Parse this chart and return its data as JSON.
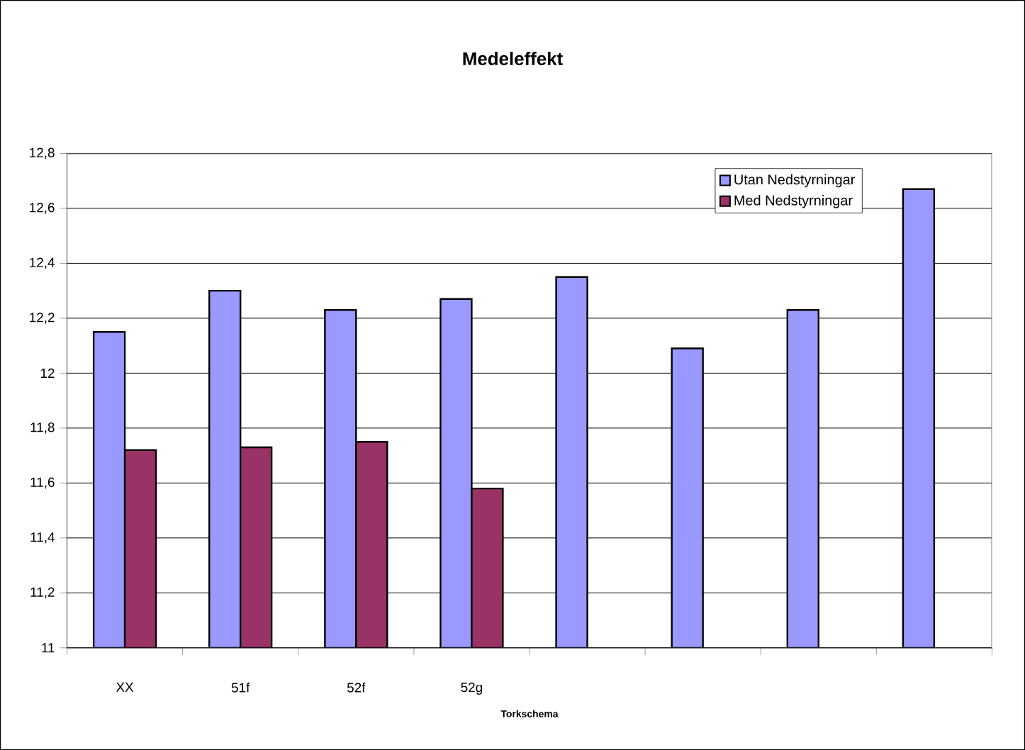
{
  "chart_data": {
    "type": "bar",
    "title": "Medeleffekt",
    "xlabel": "Torkschema",
    "categories": [
      "XX",
      "51f",
      "52f",
      "52g",
      null,
      null,
      null,
      null
    ],
    "series": [
      {
        "name": "Utan Nedstyrningar",
        "color": "#9999ff",
        "values": [
          12.15,
          12.3,
          12.23,
          12.27,
          12.35,
          12.09,
          12.23,
          12.67
        ]
      },
      {
        "name": "Med Nedstyrningar",
        "color": "#993366",
        "values": [
          11.72,
          11.73,
          11.75,
          11.58,
          null,
          null,
          null,
          null
        ]
      }
    ],
    "ylim": [
      11,
      12.8
    ],
    "yticks": [
      11,
      {
        "value": 11.2,
        "label": "11,2"
      },
      {
        "value": 11.4,
        "label": "11,4"
      },
      {
        "value": 11.6,
        "label": "11,6"
      },
      {
        "value": 11.8,
        "label": "11,8"
      },
      12,
      {
        "value": 12.2,
        "label": "12,2"
      },
      {
        "value": 12.4,
        "label": "12,4"
      },
      {
        "value": 12.6,
        "label": "12,6"
      },
      {
        "value": 12.8,
        "label": "12,8"
      }
    ],
    "grid": "y",
    "legend": "top right"
  }
}
